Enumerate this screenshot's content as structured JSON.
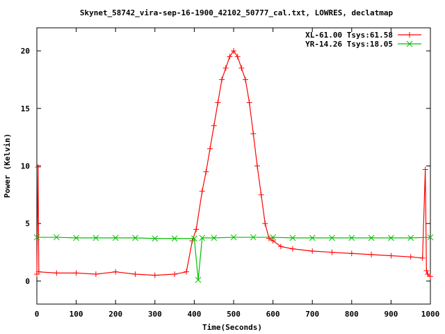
{
  "chart_data": {
    "type": "line",
    "title": "Skynet_58742_vira-sep-16-1900_42102_50777_cal.txt, LOWRES, declatmap",
    "xlabel": "Time(Seconds)",
    "ylabel": "Power (Kelvin)",
    "xlim": [
      0,
      1000
    ],
    "ylim": [
      -2,
      22
    ],
    "x_ticks": [
      0,
      100,
      200,
      300,
      400,
      500,
      600,
      700,
      800,
      900,
      1000
    ],
    "y_ticks": [
      0,
      5,
      10,
      15,
      20
    ],
    "grid": false,
    "legend_position": "top-right",
    "series": [
      {
        "name": "XL-61.00 Tsys:61.58",
        "color": "#ff0000",
        "marker": "plus",
        "x": [
          0,
          3,
          5,
          50,
          100,
          150,
          200,
          250,
          300,
          350,
          380,
          395,
          405,
          420,
          430,
          440,
          450,
          460,
          470,
          480,
          490,
          500,
          510,
          520,
          530,
          540,
          550,
          560,
          570,
          580,
          590,
          600,
          620,
          650,
          700,
          750,
          800,
          850,
          900,
          950,
          980,
          987,
          990,
          993,
          1000
        ],
        "values": [
          0.6,
          9.9,
          0.8,
          0.7,
          0.7,
          0.6,
          0.8,
          0.6,
          0.5,
          0.6,
          0.8,
          3.5,
          4.5,
          7.8,
          9.5,
          11.5,
          13.5,
          15.5,
          17.5,
          18.5,
          19.5,
          20.0,
          19.5,
          18.5,
          17.5,
          15.5,
          12.8,
          10.0,
          7.5,
          5.0,
          3.7,
          3.5,
          3.0,
          2.8,
          2.6,
          2.5,
          2.4,
          2.3,
          2.2,
          2.1,
          2.0,
          9.7,
          0.9,
          0.6,
          0.4
        ]
      },
      {
        "name": "YR-14.26 Tsys:18.05",
        "color": "#00c000",
        "marker": "cross",
        "x": [
          0,
          50,
          100,
          150,
          200,
          250,
          300,
          350,
          400,
          410,
          420,
          450,
          500,
          550,
          600,
          650,
          700,
          750,
          800,
          850,
          900,
          950,
          1000
        ],
        "values": [
          3.8,
          3.8,
          3.75,
          3.75,
          3.75,
          3.75,
          3.7,
          3.7,
          3.7,
          0.1,
          3.75,
          3.75,
          3.8,
          3.8,
          3.8,
          3.75,
          3.75,
          3.75,
          3.75,
          3.75,
          3.75,
          3.75,
          3.8
        ]
      }
    ]
  }
}
